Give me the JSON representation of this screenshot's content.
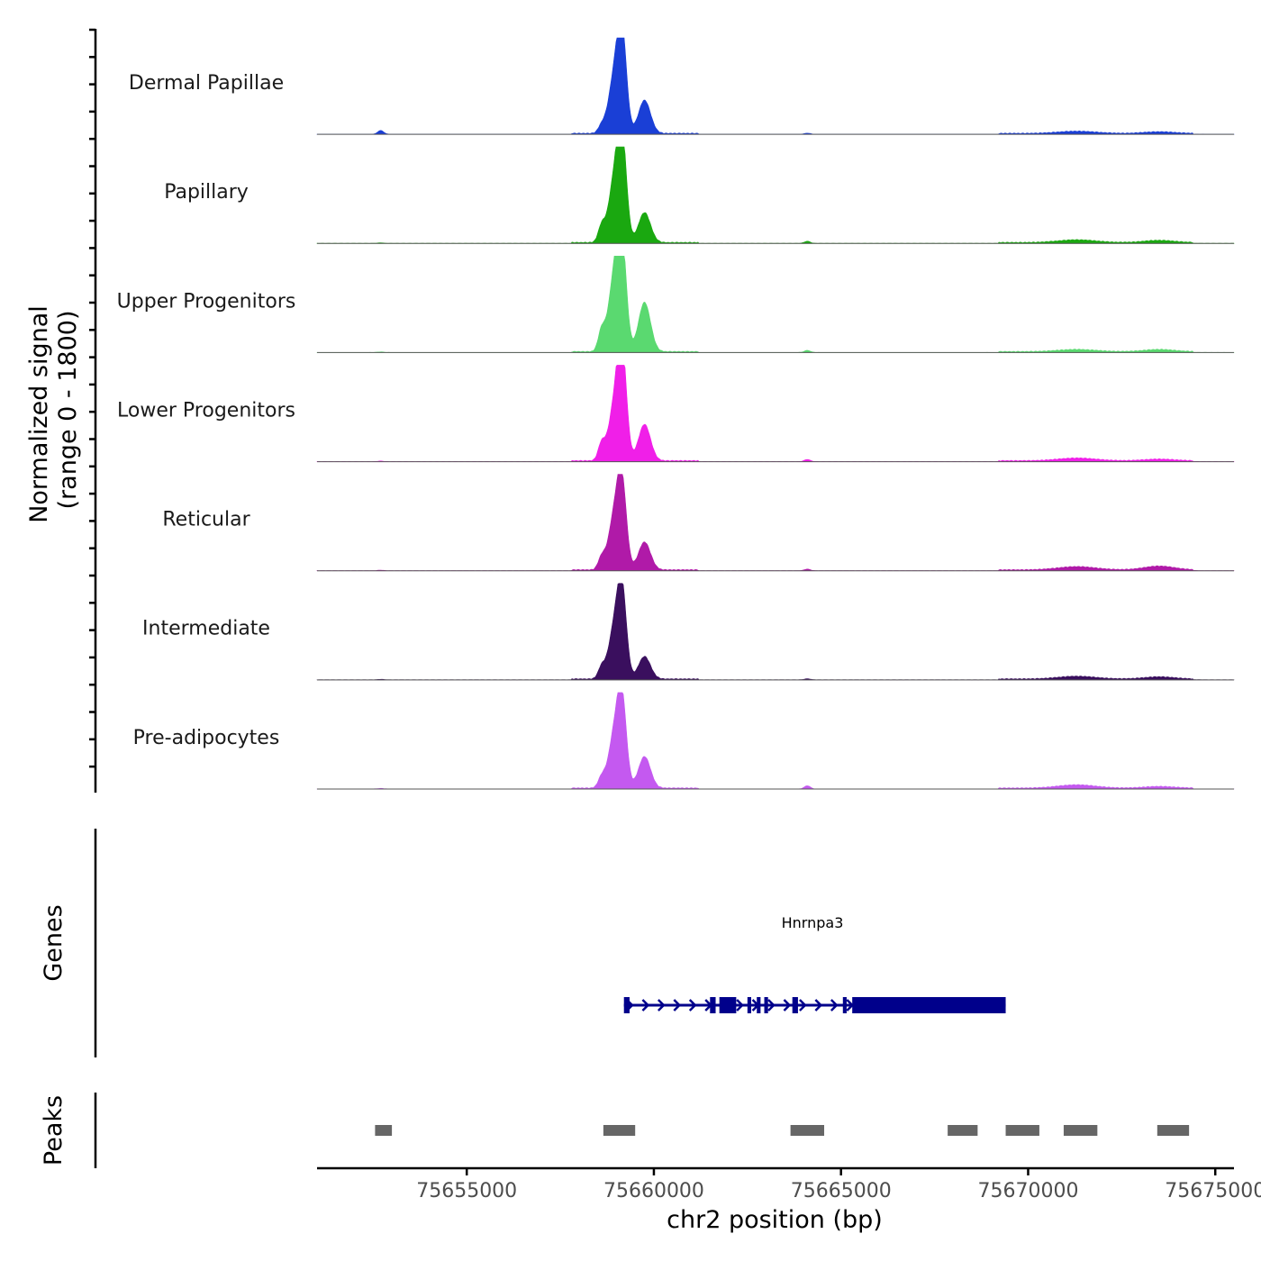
{
  "chart_data": {
    "type": "area",
    "chromosome": "chr2",
    "xlim": [
      75651000,
      75675500
    ],
    "x_ticks": [
      75655000,
      75660000,
      75665000,
      75670000,
      75675000
    ],
    "x_tick_labels": [
      "75655000",
      "75660000",
      "75665000",
      "75670000",
      "75675000"
    ],
    "xlabel": "chr2 position (bp)",
    "ylabel_line1": "Normalized signal",
    "ylabel_line2": "(range 0 - 1800)",
    "ylim": [
      0,
      1800
    ],
    "genes_label": "Genes",
    "peaks_label": "Peaks",
    "tracks": [
      {
        "name": "Dermal Papillae",
        "color": "#1a3fd6"
      },
      {
        "name": "Papillary",
        "color": "#1aa810"
      },
      {
        "name": "Upper Progenitors",
        "color": "#5ad970"
      },
      {
        "name": "Lower Progenitors",
        "color": "#f01fe8"
      },
      {
        "name": "Reticular",
        "color": "#b01aa8"
      },
      {
        "name": "Intermediate",
        "color": "#3a0f5e"
      },
      {
        "name": "Pre-adipocytes",
        "color": "#c459f0"
      }
    ],
    "signal_profile": {
      "peaks": [
        {
          "center": 75659150,
          "width": 120,
          "heights": [
            1700,
            1760,
            1720,
            1900,
            1420,
            1480,
            1460
          ]
        },
        {
          "center": 75658950,
          "width": 160,
          "heights": [
            1050,
            1150,
            1400,
            1000,
            1000,
            950,
            1000
          ]
        },
        {
          "center": 75659750,
          "width": 160,
          "heights": [
            620,
            560,
            920,
            680,
            520,
            420,
            590
          ]
        },
        {
          "center": 75658600,
          "width": 90,
          "heights": [
            120,
            280,
            360,
            300,
            210,
            200,
            180
          ]
        },
        {
          "center": 75652700,
          "width": 80,
          "heights": [
            70,
            10,
            10,
            10,
            10,
            10,
            10
          ]
        },
        {
          "center": 75664100,
          "width": 80,
          "heights": [
            20,
            40,
            40,
            40,
            30,
            20,
            60
          ]
        },
        {
          "center": 75671300,
          "width": 500,
          "heights": [
            40,
            50,
            40,
            50,
            60,
            50,
            60
          ]
        },
        {
          "center": 75673500,
          "width": 400,
          "heights": [
            30,
            40,
            40,
            30,
            70,
            40,
            30
          ]
        }
      ],
      "background_regions": [
        [
          75657800,
          75661200
        ],
        [
          75669200,
          75674400
        ]
      ]
    },
    "gene": {
      "name": "Hnrnpa3",
      "start": 75659200,
      "end": 75669400,
      "strand": "+",
      "color": "#00008b",
      "exons": [
        [
          75659200,
          75659350
        ],
        [
          75661500,
          75661650
        ],
        [
          75661750,
          75662200
        ],
        [
          75662500,
          75662600
        ],
        [
          75662750,
          75662850
        ],
        [
          75662950,
          75663050
        ],
        [
          75663700,
          75663850
        ],
        [
          75665050,
          75665150
        ],
        [
          75665300,
          75669400
        ]
      ]
    },
    "peaks": {
      "color": "#666666",
      "regions": [
        [
          75652550,
          75653000
        ],
        [
          75658650,
          75659500
        ],
        [
          75663650,
          75664550
        ],
        [
          75667850,
          75668650
        ],
        [
          75669400,
          75670300
        ],
        [
          75670950,
          75671850
        ],
        [
          75673450,
          75674300
        ]
      ]
    }
  }
}
